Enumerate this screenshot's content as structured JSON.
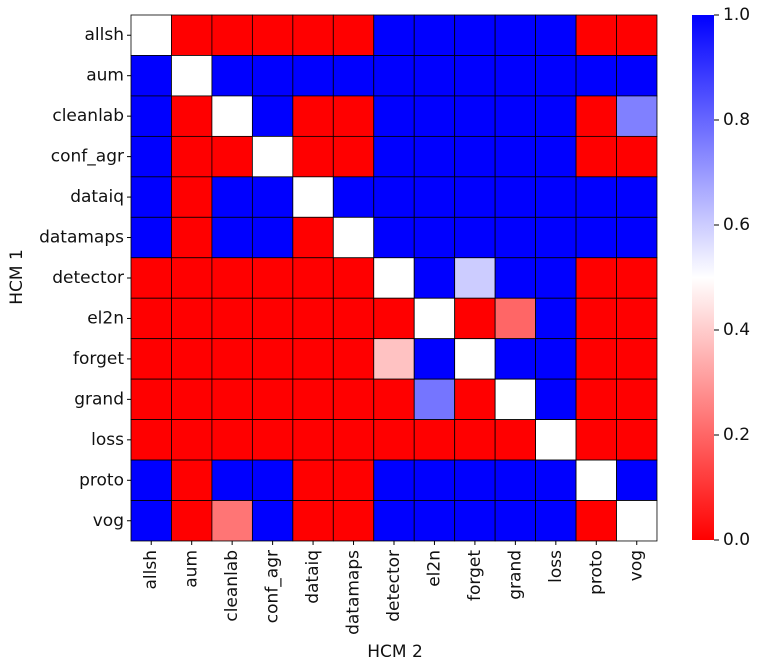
{
  "chart_data": {
    "type": "heatmap",
    "title": "",
    "xlabel": "HCM 2",
    "ylabel": "HCM 1",
    "row_labels": [
      "allsh",
      "aum",
      "cleanlab",
      "conf_agr",
      "dataiq",
      "datamaps",
      "detector",
      "el2n",
      "forget",
      "grand",
      "loss",
      "proto",
      "vog"
    ],
    "col_labels": [
      "allsh",
      "aum",
      "cleanlab",
      "conf_agr",
      "dataiq",
      "datamaps",
      "detector",
      "el2n",
      "forget",
      "grand",
      "loss",
      "proto",
      "vog"
    ],
    "values": [
      [
        0.5,
        0,
        0,
        0,
        0,
        0,
        1,
        1,
        1,
        1,
        1,
        0,
        0
      ],
      [
        1,
        0.5,
        1,
        1,
        1,
        1,
        1,
        1,
        1,
        1,
        1,
        1,
        1
      ],
      [
        1,
        0,
        0.5,
        1,
        0,
        0,
        1,
        1,
        1,
        1,
        1,
        0,
        0.75
      ],
      [
        1,
        0,
        0,
        0.5,
        0,
        0,
        1,
        1,
        1,
        1,
        1,
        0,
        0
      ],
      [
        1,
        0,
        1,
        1,
        0.5,
        1,
        1,
        1,
        1,
        1,
        1,
        1,
        1
      ],
      [
        1,
        0,
        1,
        1,
        0,
        0.5,
        1,
        1,
        1,
        1,
        1,
        1,
        1
      ],
      [
        0,
        0,
        0,
        0,
        0,
        0,
        0.5,
        1,
        0.6,
        1,
        1,
        0,
        0
      ],
      [
        0,
        0,
        0,
        0,
        0,
        0,
        0,
        0.5,
        0,
        0.2,
        1,
        0,
        0
      ],
      [
        0,
        0,
        0,
        0,
        0,
        0,
        0.38,
        1,
        0.5,
        1,
        1,
        0,
        0
      ],
      [
        0,
        0,
        0,
        0,
        0,
        0,
        0,
        0.77,
        0,
        0.5,
        1,
        0,
        0
      ],
      [
        0,
        0,
        0,
        0,
        0,
        0,
        0,
        0,
        0,
        0,
        0.5,
        0,
        0
      ],
      [
        1,
        0,
        1,
        1,
        0,
        0,
        1,
        1,
        1,
        1,
        1,
        0.5,
        1
      ],
      [
        1,
        0,
        0.23,
        1,
        0,
        0,
        1,
        1,
        1,
        1,
        1,
        0,
        0.5
      ]
    ],
    "colorbar": {
      "range": [
        0.0,
        1.0
      ],
      "ticks": [
        "0.0",
        "0.2",
        "0.4",
        "0.6",
        "0.8",
        "1.0"
      ],
      "colors": {
        "low": "#ff0000",
        "mid": "#ffffff",
        "high": "#0000ff"
      }
    },
    "grid": true
  }
}
